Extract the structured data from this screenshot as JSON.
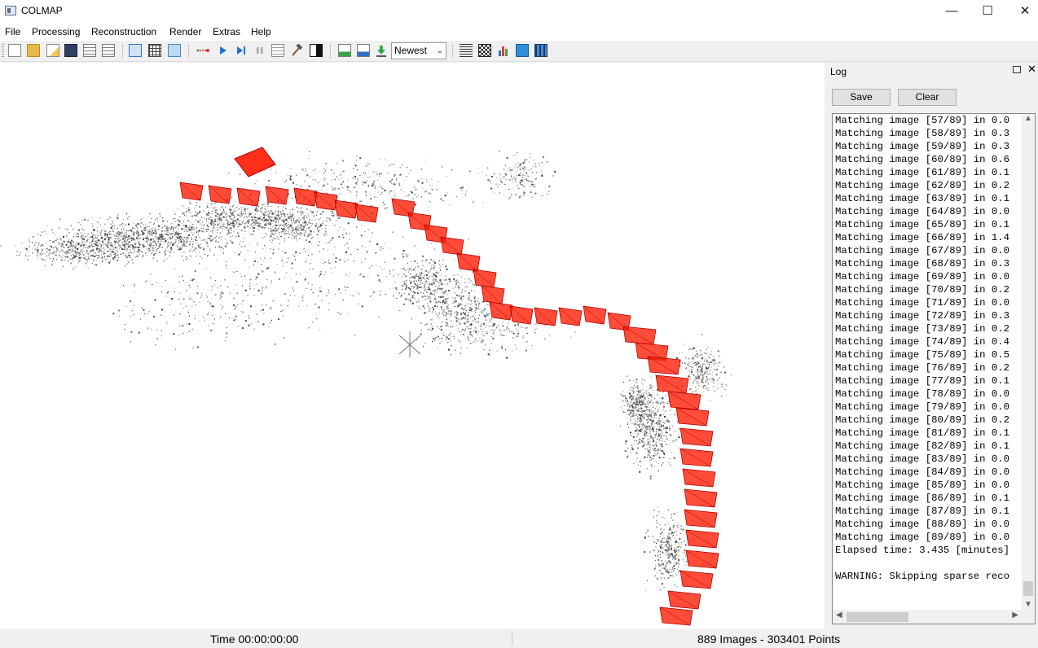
{
  "window": {
    "title": "COLMAP"
  },
  "menu": [
    "File",
    "Processing",
    "Reconstruction",
    "Render",
    "Extras",
    "Help"
  ],
  "toolbar": {
    "icons": [
      "new-project-icon",
      "open-project-icon",
      "edit-project-icon",
      "save-project-icon",
      "import-icon",
      "export-icon",
      "grab-image-icon",
      "grid-icon",
      "database-icon",
      "feature-extraction-icon",
      "play-icon",
      "step-icon",
      "pause-icon",
      "bundle-adjust-icon",
      "hammer-icon",
      "contrast-icon",
      "add-images-icon",
      "add-images-2-icon",
      "download-icon",
      "list-icon",
      "qr-icon",
      "stats-icon",
      "screenshot-icon",
      "video-icon"
    ],
    "reconstruction_select": "Newest"
  },
  "log": {
    "title": "Log",
    "save_label": "Save",
    "clear_label": "Clear",
    "lines": [
      "Matching image [57/89] in 0.0",
      "Matching image [58/89] in 0.3",
      "Matching image [59/89] in 0.3",
      "Matching image [60/89] in 0.6",
      "Matching image [61/89] in 0.1",
      "Matching image [62/89] in 0.2",
      "Matching image [63/89] in 0.1",
      "Matching image [64/89] in 0.0",
      "Matching image [65/89] in 0.1",
      "Matching image [66/89] in 1.4",
      "Matching image [67/89] in 0.0",
      "Matching image [68/89] in 0.3",
      "Matching image [69/89] in 0.0",
      "Matching image [70/89] in 0.2",
      "Matching image [71/89] in 0.0",
      "Matching image [72/89] in 0.3",
      "Matching image [73/89] in 0.2",
      "Matching image [74/89] in 0.4",
      "Matching image [75/89] in 0.5",
      "Matching image [76/89] in 0.2",
      "Matching image [77/89] in 0.1",
      "Matching image [78/89] in 0.0",
      "Matching image [79/89] in 0.0",
      "Matching image [80/89] in 0.2",
      "Matching image [81/89] in 0.1",
      "Matching image [82/89] in 0.1",
      "Matching image [83/89] in 0.0",
      "Matching image [84/89] in 0.0",
      "Matching image [85/89] in 0.0",
      "Matching image [86/89] in 0.1",
      "Matching image [87/89] in 0.1",
      "Matching image [88/89] in 0.0",
      "Matching image [89/89] in 0.0",
      "Elapsed time: 3.435 [minutes]",
      "",
      "WARNING: Skipping sparse reco"
    ]
  },
  "status": {
    "time": "Time 00:00:00:00",
    "counts": "889 Images - 303401 Points"
  },
  "colors": {
    "camera": "#ff1a00",
    "camera_edge": "#b00000",
    "points": "#5b6472"
  }
}
